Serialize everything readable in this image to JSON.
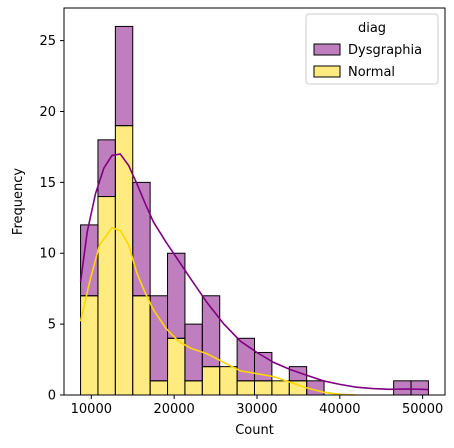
{
  "chart_data": {
    "type": "bar",
    "subtype": "stacked-histogram-with-kde",
    "xlabel": "Count",
    "ylabel": "Frequency",
    "xlim": [
      6700,
      52700
    ],
    "ylim": [
      0,
      27.3
    ],
    "x_ticks": [
      10000,
      20000,
      30000,
      40000,
      50000
    ],
    "x_tick_labels": [
      "10000",
      "20000",
      "30000",
      "40000",
      "50000"
    ],
    "y_ticks": [
      0,
      5,
      10,
      15,
      20,
      25
    ],
    "y_tick_labels": [
      "0",
      "5",
      "10",
      "15",
      "20",
      "25"
    ],
    "grid": false,
    "legend": {
      "title": "diag",
      "placement": "top-right",
      "entries": [
        "Dysgraphia",
        "Normal"
      ]
    },
    "bin_edges": [
      8700,
      10800,
      12900,
      15000,
      17100,
      19200,
      21300,
      23400,
      25500,
      27600,
      29700,
      31800,
      33900,
      36000,
      38100,
      40200,
      42300,
      44400,
      46500,
      48600,
      50700
    ],
    "series": [
      {
        "name": "Normal",
        "color": "#ffd700",
        "counts": [
          7,
          14,
          19,
          7,
          1,
          4,
          1,
          2,
          2,
          1,
          1,
          1,
          1,
          0,
          0,
          0,
          0,
          0,
          0,
          0
        ],
        "kde": [
          [
            8700,
            5.2
          ],
          [
            9800,
            8.0
          ],
          [
            11000,
            10.6
          ],
          [
            12500,
            11.8
          ],
          [
            13500,
            11.6
          ],
          [
            14500,
            10.6
          ],
          [
            15500,
            8.6
          ],
          [
            16500,
            7.2
          ],
          [
            17500,
            6.0
          ],
          [
            19000,
            4.7
          ],
          [
            20500,
            3.8
          ],
          [
            22000,
            3.3
          ],
          [
            24000,
            2.9
          ],
          [
            26000,
            2.3
          ],
          [
            28000,
            1.7
          ],
          [
            30000,
            1.5
          ],
          [
            32000,
            1.3
          ],
          [
            34000,
            0.9
          ],
          [
            36000,
            0.5
          ],
          [
            38000,
            0.2
          ],
          [
            40000,
            0.05
          ],
          [
            42000,
            0.0
          ]
        ]
      },
      {
        "name": "Dysgraphia",
        "color": "#800080",
        "counts": [
          5,
          4,
          7,
          8,
          6,
          6,
          4,
          5,
          0,
          3,
          2,
          0,
          1,
          1,
          0,
          0,
          0,
          0,
          1,
          1
        ],
        "kde": [
          [
            8700,
            8.0
          ],
          [
            9500,
            11.5
          ],
          [
            10500,
            14.2
          ],
          [
            11500,
            16.0
          ],
          [
            12500,
            16.9
          ],
          [
            13500,
            17.0
          ],
          [
            14500,
            16.2
          ],
          [
            15500,
            14.9
          ],
          [
            16500,
            13.5
          ],
          [
            17500,
            12.2
          ],
          [
            19000,
            10.8
          ],
          [
            20500,
            9.5
          ],
          [
            22000,
            8.2
          ],
          [
            24000,
            6.5
          ],
          [
            26000,
            5.0
          ],
          [
            28000,
            3.8
          ],
          [
            30000,
            3.0
          ],
          [
            32000,
            2.3
          ],
          [
            34000,
            1.8
          ],
          [
            36000,
            1.4
          ],
          [
            38000,
            1.0
          ],
          [
            40000,
            0.75
          ],
          [
            42000,
            0.55
          ],
          [
            44000,
            0.45
          ],
          [
            46000,
            0.4
          ],
          [
            48000,
            0.42
          ],
          [
            50000,
            0.4
          ],
          [
            50700,
            0.38
          ]
        ]
      }
    ]
  }
}
